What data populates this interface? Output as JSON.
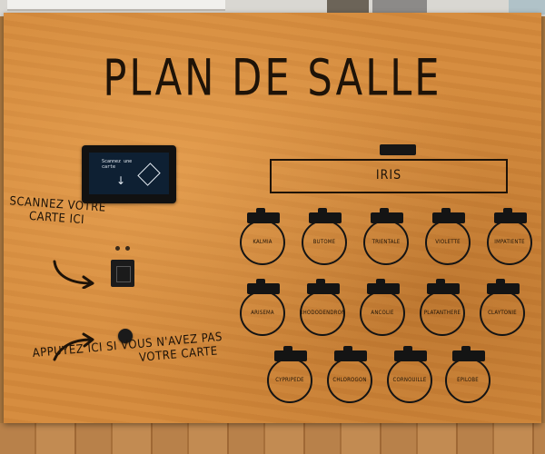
{
  "title": "PLAN DE SALLE",
  "screen": {
    "text": "Scannez une carte"
  },
  "scan_prompt": {
    "line1": "SCANNEZ VOTRE",
    "line2": "CARTE ICI"
  },
  "press_prompt": {
    "line1": "APPUYEZ ICI SI VOUS N'AVEZ PAS",
    "line2": "VOTRE CARTE"
  },
  "main_room": "IRIS",
  "rooms_row1": [
    "KALMIA",
    "BUTOME",
    "TRIENTALE",
    "VIOLETTE",
    "IMPATIENTE"
  ],
  "rooms_row2": [
    "ARISEMA",
    "RHODODENDRON",
    "ANCOLIE",
    "PLATANTHERE",
    "CLAYTONIE"
  ],
  "rooms_row3": [
    "CYPRIPEDE",
    "CHLOROGON",
    "CORNOUILLE",
    "EPILOBE"
  ]
}
